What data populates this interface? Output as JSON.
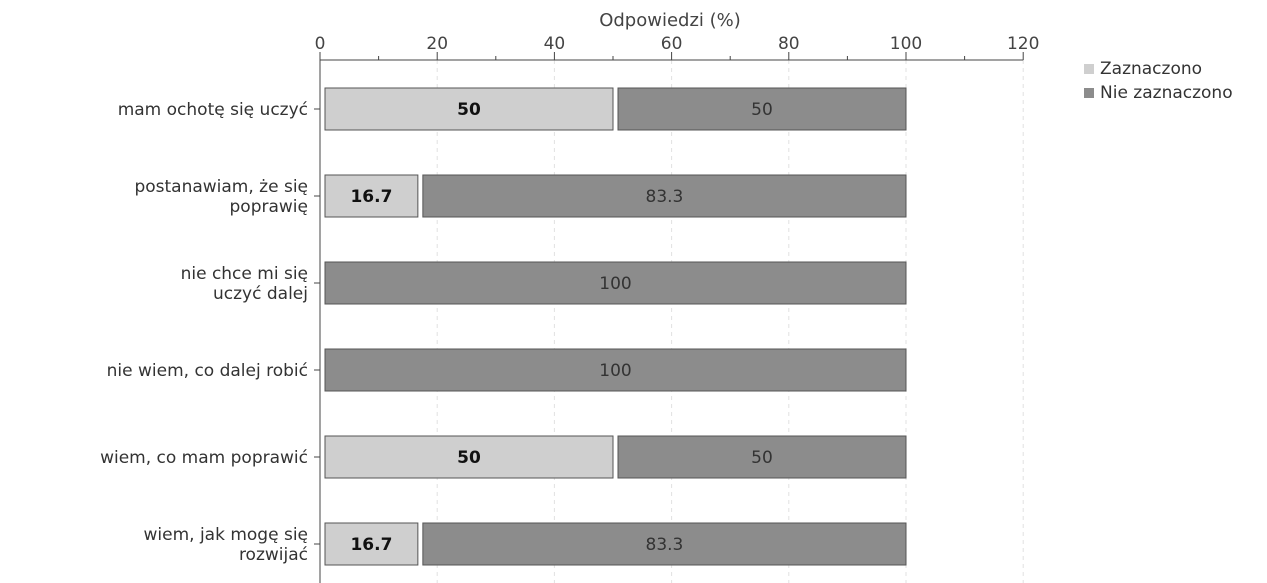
{
  "chart_data": {
    "type": "bar",
    "orientation": "horizontal",
    "stacked": true,
    "xlabel": "Odpowiedzi (%)",
    "xlim": [
      0,
      120
    ],
    "xticks": [
      0,
      20,
      40,
      60,
      80,
      100,
      120
    ],
    "x_axis_position": "top",
    "grid": true,
    "legend_position": "top-right",
    "categories": [
      "mam ochotę się uczyć",
      "postanawiam, że się poprawię",
      "nie chce mi się uczyć dalej",
      "nie wiem, co dalej robić",
      "wiem, co mam poprawić",
      "wiem, jak mogę się rozwijać"
    ],
    "series": [
      {
        "name": "Zaznaczono",
        "color": "#cfcfcf",
        "values": [
          50,
          16.7,
          0,
          0,
          50,
          16.7
        ],
        "labels": [
          "50",
          "16.7",
          "",
          "",
          "50",
          "16.7"
        ]
      },
      {
        "name": "Nie zaznaczono",
        "color": "#8c8c8c",
        "values": [
          50,
          83.3,
          100,
          100,
          50,
          83.3
        ],
        "labels": [
          "50",
          "83.3",
          "100",
          "100",
          "50",
          "83.3"
        ]
      }
    ]
  }
}
